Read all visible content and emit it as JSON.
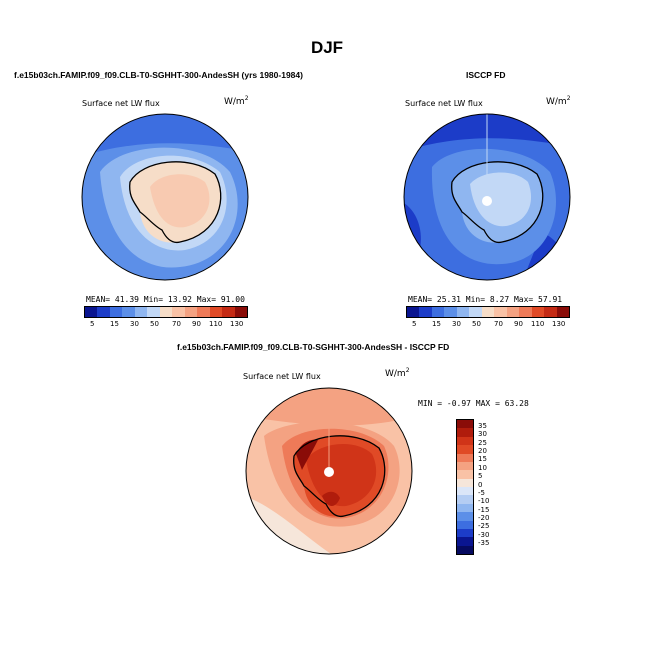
{
  "season": "DJF",
  "colors": {
    "deep_blue": "#0a1590",
    "blue": "#3d6ee0",
    "light_blue": "#8fb6f0",
    "pale": "#f6ddc8",
    "light_red": "#f4a282",
    "red": "#e04a26",
    "dark_red": "#8a0c08"
  },
  "panels": {
    "model": {
      "header": "f.e15b03ch.FAMIP.f09_f09.CLB-T0-SGHHT-300-AndesSH (yrs 1980-1984)",
      "variable": "Surface net LW flux",
      "units_base": "W/m",
      "units_exp": "2",
      "stats": "MEAN=  41.39  Min=  13.92  Max=  91.00"
    },
    "obs": {
      "header": "ISCCP FD",
      "variable": "Surface net LW flux",
      "units_base": "W/m",
      "units_exp": "2",
      "stats": "MEAN=  25.31  Min=   8.27  Max=  57.91"
    },
    "diff": {
      "header": "f.e15b03ch.FAMIP.f09_f09.CLB-T0-SGHHT-300-AndesSH - ISCCP FD",
      "variable": "Surface net LW flux",
      "units_base": "W/m",
      "units_exp": "2",
      "stats": "MIN =  -0.97 MAX =  63.28"
    }
  },
  "colorbar_top": {
    "labels": [
      "5",
      "15",
      "30",
      "50",
      "70",
      "90",
      "110",
      "130"
    ],
    "colors": [
      "#0a1590",
      "#1c3cc8",
      "#3d6ee0",
      "#5c8fe8",
      "#8fb6f0",
      "#c2d8f6",
      "#f6ddc8",
      "#f9c2a6",
      "#f4a282",
      "#ee7a58",
      "#e04a26",
      "#c42a14",
      "#8a0c08"
    ]
  },
  "colorbar_diff": {
    "labels": [
      "35",
      "30",
      "25",
      "20",
      "15",
      "10",
      "5",
      "0",
      "-5",
      "-10",
      "-15",
      "-20",
      "-25",
      "-30",
      "-35"
    ],
    "colors": [
      "#8a0c08",
      "#b01c0c",
      "#d03418",
      "#e04a26",
      "#ee7a58",
      "#f4a282",
      "#f9c2a6",
      "#f6e6da",
      "#dbe6f8",
      "#b4cdf3",
      "#8fb6f0",
      "#5c8fe8",
      "#3d6ee0",
      "#1c3cc8",
      "#0a1590",
      "#060a60"
    ]
  }
}
